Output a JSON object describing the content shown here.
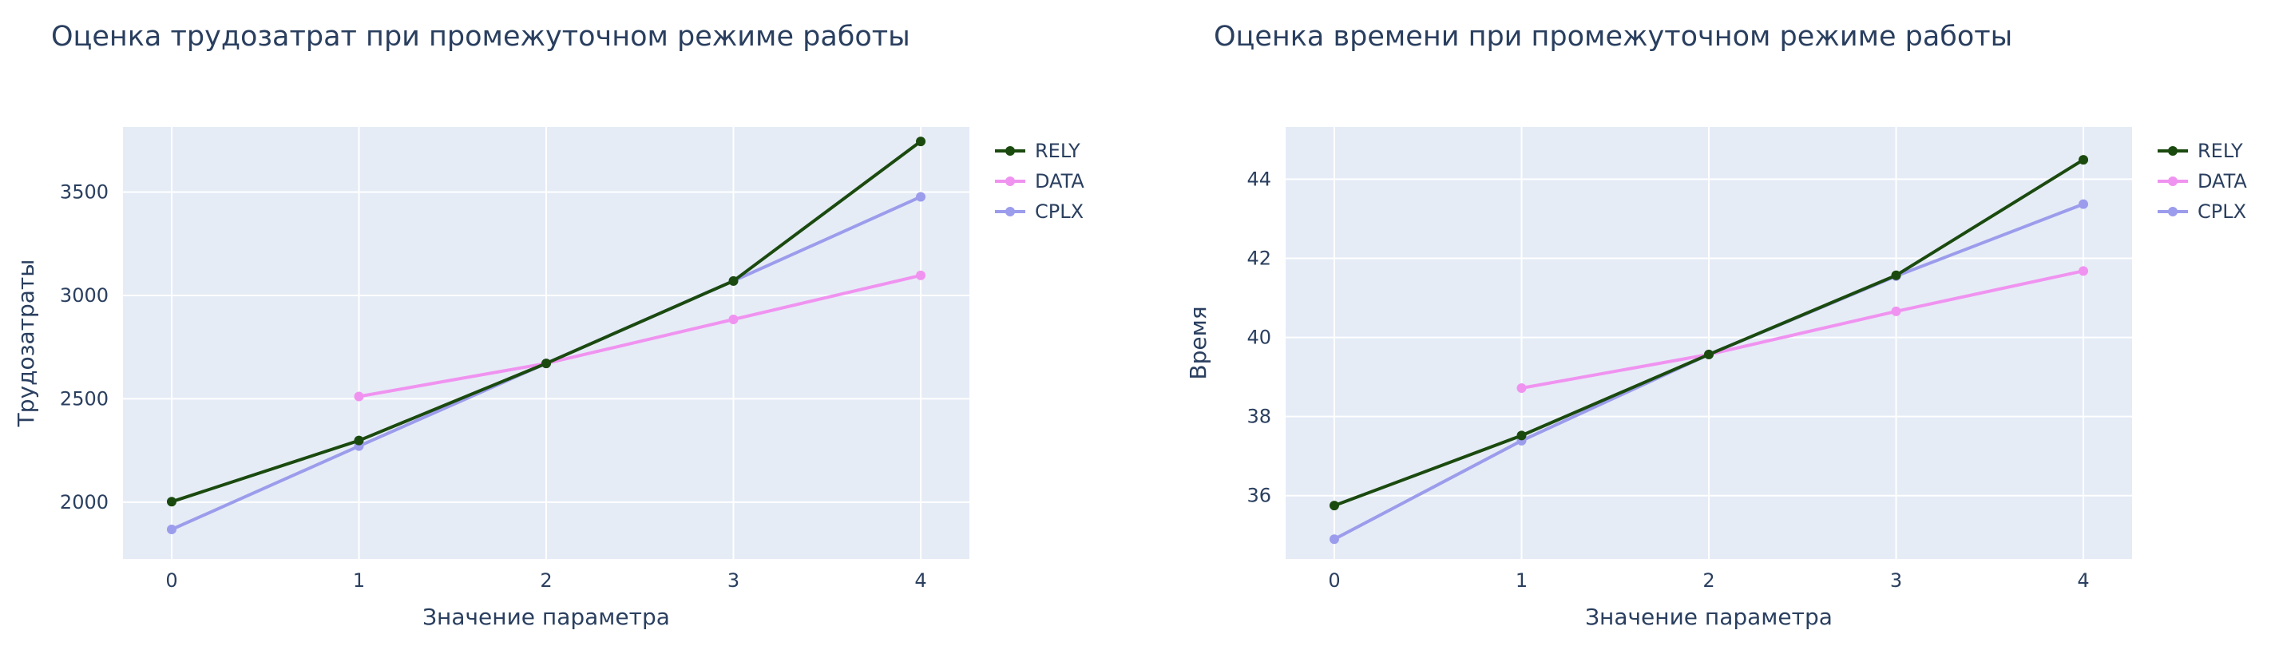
{
  "chart_data": [
    {
      "type": "line",
      "title": "Оценка трудозатрат при промежуточном режиме работы",
      "xlabel": "Значение параметра",
      "ylabel": "Трудозатраты",
      "x_ticks": [
        "0",
        "1",
        "2",
        "3",
        "4"
      ],
      "y_ticks": [
        "2000",
        "2500",
        "3000",
        "3500"
      ],
      "xlim": [
        -0.26,
        4.26
      ],
      "ylim": [
        1725,
        3815
      ],
      "grid": true,
      "legend_position": "top-right",
      "series": [
        {
          "name": "RELY",
          "color": "#1b4a0f",
          "x": [
            0,
            1,
            2,
            3,
            4
          ],
          "values": [
            2002,
            2298,
            2671,
            3070,
            3745
          ]
        },
        {
          "name": "DATA",
          "color": "#f093f0",
          "x": [
            1,
            2,
            3,
            4
          ],
          "values": [
            2511,
            2671,
            2884,
            3097
          ]
        },
        {
          "name": "CPLX",
          "color": "#9c9cec",
          "x": [
            0,
            1,
            2,
            3,
            4
          ],
          "values": [
            1868,
            2271,
            2671,
            3070,
            3477
          ]
        }
      ]
    },
    {
      "type": "line",
      "title": "Оценка времени при промежуточном режиме работы",
      "xlabel": "Значение параметра",
      "ylabel": "Время",
      "x_ticks": [
        "0",
        "1",
        "2",
        "3",
        "4"
      ],
      "y_ticks": [
        "36",
        "38",
        "40",
        "42",
        "44"
      ],
      "xlim": [
        -0.26,
        4.26
      ],
      "ylim": [
        34.4,
        45.32
      ],
      "grid": true,
      "legend_position": "top-right",
      "series": [
        {
          "name": "RELY",
          "color": "#1b4a0f",
          "x": [
            0,
            1,
            2,
            3,
            4
          ],
          "values": [
            35.75,
            37.52,
            39.57,
            41.57,
            44.49
          ]
        },
        {
          "name": "DATA",
          "color": "#f093f0",
          "x": [
            1,
            2,
            3,
            4
          ],
          "values": [
            38.72,
            39.57,
            40.66,
            41.68
          ]
        },
        {
          "name": "CPLX",
          "color": "#9c9cec",
          "x": [
            0,
            1,
            2,
            3,
            4
          ],
          "values": [
            34.9,
            37.39,
            39.57,
            41.55,
            43.37
          ]
        }
      ]
    }
  ]
}
